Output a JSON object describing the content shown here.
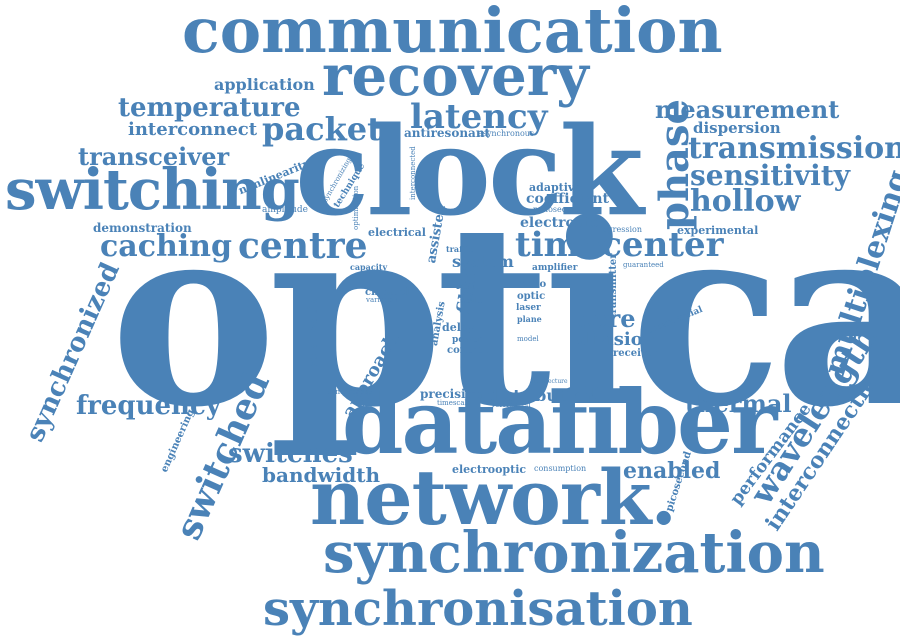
{
  "cloud": {
    "color": "#4a82b7",
    "background": "#ffffff",
    "words": [
      {
        "text": "optical"
      },
      {
        "text": "clock"
      },
      {
        "text": "communication"
      },
      {
        "text": "recovery"
      },
      {
        "text": "switching"
      },
      {
        "text": "network."
      },
      {
        "text": "synchronization"
      },
      {
        "text": "synchronisation"
      },
      {
        "text": "datafiber"
      },
      {
        "text": "latency"
      },
      {
        "text": "packet"
      },
      {
        "text": "temperature"
      },
      {
        "text": "transceiver"
      },
      {
        "text": "caching"
      },
      {
        "text": "centre"
      },
      {
        "text": "timecenter"
      },
      {
        "text": "phase"
      },
      {
        "text": "measurement"
      },
      {
        "text": "transmission"
      },
      {
        "text": "sensitivity"
      },
      {
        "text": "hollow"
      },
      {
        "text": "multiplexing"
      },
      {
        "text": "wavelength"
      },
      {
        "text": "interconnection"
      },
      {
        "text": "switched"
      },
      {
        "text": "synchronized"
      },
      {
        "text": "frequency"
      },
      {
        "text": "switches"
      },
      {
        "text": "bandwidth"
      },
      {
        "text": "thermal"
      },
      {
        "text": "performance"
      },
      {
        "text": "enabled"
      },
      {
        "text": "application"
      },
      {
        "text": "interconnect"
      },
      {
        "text": "antiresonant"
      },
      {
        "text": "asynchronous"
      },
      {
        "text": "dispersion"
      },
      {
        "text": "nonlinearity"
      },
      {
        "text": "demonstration"
      },
      {
        "text": "amplitude"
      },
      {
        "text": "electrical"
      },
      {
        "text": "electronic"
      },
      {
        "text": "experimental"
      },
      {
        "text": "adaptive"
      },
      {
        "text": "coefficient"
      },
      {
        "text": "nanosecond"
      },
      {
        "text": "system"
      },
      {
        "text": "core"
      },
      {
        "text": "division"
      },
      {
        "text": "receiver"
      },
      {
        "text": "precision"
      },
      {
        "text": "distribution"
      },
      {
        "text": "approach"
      },
      {
        "text": "electrooptic"
      },
      {
        "text": "consumption"
      },
      {
        "text": "commercial"
      },
      {
        "text": "polarization"
      },
      {
        "text": "channel"
      },
      {
        "text": "engineering"
      },
      {
        "text": "picosecond"
      },
      {
        "text": "regression"
      },
      {
        "text": "guaranteed"
      },
      {
        "text": "amplifier"
      },
      {
        "text": "capacity"
      },
      {
        "text": "fibre"
      },
      {
        "text": "radio"
      },
      {
        "text": "optic"
      },
      {
        "text": "delay"
      },
      {
        "text": "power"
      },
      {
        "text": "control"
      },
      {
        "text": "timescale"
      },
      {
        "text": "technique"
      },
      {
        "text": "synchronizing"
      },
      {
        "text": "optimisation"
      },
      {
        "text": "interconnected"
      },
      {
        "text": "transmitter"
      },
      {
        "text": "variation"
      },
      {
        "text": "traffic"
      },
      {
        "text": "referenced"
      },
      {
        "text": "laser"
      },
      {
        "text": "synchronous"
      },
      {
        "text": "architecture"
      },
      {
        "text": "real"
      },
      {
        "text": "plane"
      },
      {
        "text": "model"
      },
      {
        "text": "scale"
      },
      {
        "text": "assisted"
      },
      {
        "text": "analysis"
      }
    ]
  }
}
